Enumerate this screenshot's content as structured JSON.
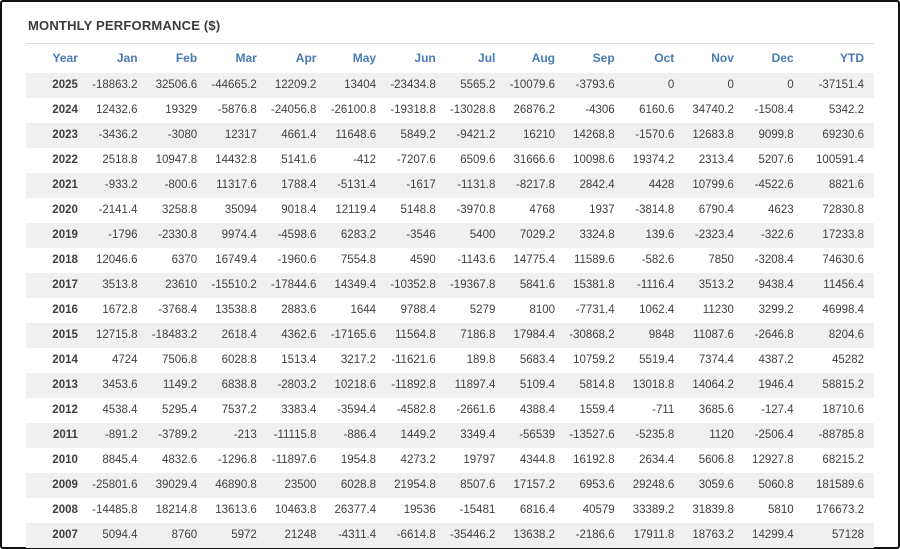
{
  "title": "MONTHLY PERFORMANCE ($)",
  "colors": {
    "header_text": "#4a7ab5",
    "negative_value": "#ee5555",
    "positive_value": "#3f3f3f",
    "row_alternate_bg": "#f0f0f0",
    "frame_border": "#111111"
  },
  "table": {
    "columns": [
      "Year",
      "Jan",
      "Feb",
      "Mar",
      "Apr",
      "May",
      "Jun",
      "Jul",
      "Aug",
      "Sep",
      "Oct",
      "Nov",
      "Dec",
      "YTD"
    ],
    "rows": [
      {
        "year": "2025",
        "values": [
          "-18863.2",
          "32506.6",
          "-44665.2",
          "12209.2",
          "13404",
          "-23434.8",
          "5565.2",
          "-10079.6",
          "-3793.6",
          "0",
          "0",
          "0",
          "-37151.4"
        ]
      },
      {
        "year": "2024",
        "values": [
          "12432.6",
          "19329",
          "-5876.8",
          "-24056.8",
          "-26100.8",
          "-19318.8",
          "-13028.8",
          "26876.2",
          "-4306",
          "6160.6",
          "34740.2",
          "-1508.4",
          "5342.2"
        ]
      },
      {
        "year": "2023",
        "values": [
          "-3436.2",
          "-3080",
          "12317",
          "4661.4",
          "11648.6",
          "5849.2",
          "-9421.2",
          "16210",
          "14268.8",
          "-1570.6",
          "12683.8",
          "9099.8",
          "69230.6"
        ]
      },
      {
        "year": "2022",
        "values": [
          "2518.8",
          "10947.8",
          "14432.8",
          "5141.6",
          "-412",
          "-7207.6",
          "6509.6",
          "31666.6",
          "10098.6",
          "19374.2",
          "2313.4",
          "5207.6",
          "100591.4"
        ]
      },
      {
        "year": "2021",
        "values": [
          "-933.2",
          "-800.6",
          "11317.6",
          "1788.4",
          "-5131.4",
          "-1617",
          "-1131.8",
          "-8217.8",
          "2842.4",
          "4428",
          "10799.6",
          "-4522.6",
          "8821.6"
        ]
      },
      {
        "year": "2020",
        "values": [
          "-2141.4",
          "3258.8",
          "35094",
          "9018.4",
          "12119.4",
          "5148.8",
          "-3970.8",
          "4768",
          "1937",
          "-3814.8",
          "6790.4",
          "4623",
          "72830.8"
        ]
      },
      {
        "year": "2019",
        "values": [
          "-1796",
          "-2330.8",
          "9974.4",
          "-4598.6",
          "6283.2",
          "-3546",
          "5400",
          "7029.2",
          "3324.8",
          "139.6",
          "-2323.4",
          "-322.6",
          "17233.8"
        ]
      },
      {
        "year": "2018",
        "values": [
          "12046.6",
          "6370",
          "16749.4",
          "-1960.6",
          "7554.8",
          "4590",
          "-1143.6",
          "14775.4",
          "11589.6",
          "-582.6",
          "7850",
          "-3208.4",
          "74630.6"
        ]
      },
      {
        "year": "2017",
        "values": [
          "3513.8",
          "23610",
          "-15510.2",
          "-17844.6",
          "14349.4",
          "-10352.8",
          "-19367.8",
          "5841.6",
          "15381.8",
          "-1116.4",
          "3513.2",
          "9438.4",
          "11456.4"
        ]
      },
      {
        "year": "2016",
        "values": [
          "1672.8",
          "-3768.4",
          "13538.8",
          "2883.6",
          "1644",
          "9788.4",
          "5279",
          "8100",
          "-7731.4",
          "1062.4",
          "11230",
          "3299.2",
          "46998.4"
        ]
      },
      {
        "year": "2015",
        "values": [
          "12715.8",
          "-18483.2",
          "2618.4",
          "4362.6",
          "-17165.6",
          "11564.8",
          "7186.8",
          "17984.4",
          "-30868.2",
          "9848",
          "11087.6",
          "-2646.8",
          "8204.6"
        ]
      },
      {
        "year": "2014",
        "values": [
          "4724",
          "7506.8",
          "6028.8",
          "1513.4",
          "3217.2",
          "-11621.6",
          "189.8",
          "5683.4",
          "10759.2",
          "5519.4",
          "7374.4",
          "4387.2",
          "45282"
        ]
      },
      {
        "year": "2013",
        "values": [
          "3453.6",
          "1149.2",
          "6838.8",
          "-2803.2",
          "10218.6",
          "-11892.8",
          "11897.4",
          "5109.4",
          "5814.8",
          "13018.8",
          "14064.2",
          "1946.4",
          "58815.2"
        ]
      },
      {
        "year": "2012",
        "values": [
          "4538.4",
          "5295.4",
          "7537.2",
          "3383.4",
          "-3594.4",
          "-4582.8",
          "-2661.6",
          "4388.4",
          "1559.4",
          "-711",
          "3685.6",
          "-127.4",
          "18710.6"
        ]
      },
      {
        "year": "2011",
        "values": [
          "-891.2",
          "-3789.2",
          "-213",
          "-11115.8",
          "-886.4",
          "1449.2",
          "3349.4",
          "-56539",
          "-13527.6",
          "-5235.8",
          "1120",
          "-2506.4",
          "-88785.8"
        ]
      },
      {
        "year": "2010",
        "values": [
          "8845.4",
          "4832.6",
          "-1296.8",
          "-11897.6",
          "1954.8",
          "4273.2",
          "19797",
          "4344.8",
          "16192.8",
          "2634.4",
          "5606.8",
          "12927.8",
          "68215.2"
        ]
      },
      {
        "year": "2009",
        "values": [
          "-25801.6",
          "39029.4",
          "46890.8",
          "23500",
          "6028.8",
          "21954.8",
          "8507.6",
          "17157.2",
          "6953.6",
          "29248.6",
          "3059.6",
          "5060.8",
          "181589.6"
        ]
      },
      {
        "year": "2008",
        "values": [
          "-14485.8",
          "18214.8",
          "13613.6",
          "10463.8",
          "26377.4",
          "19536",
          "-15481",
          "6816.4",
          "40579",
          "33389.2",
          "31839.8",
          "5810",
          "176673.2"
        ]
      },
      {
        "year": "2007",
        "values": [
          "5094.4",
          "8760",
          "5972",
          "21248",
          "-4311.4",
          "-6614.8",
          "-35446.2",
          "13638.2",
          "-2186.6",
          "17911.8",
          "18763.2",
          "14299.4",
          "57128"
        ]
      }
    ]
  }
}
